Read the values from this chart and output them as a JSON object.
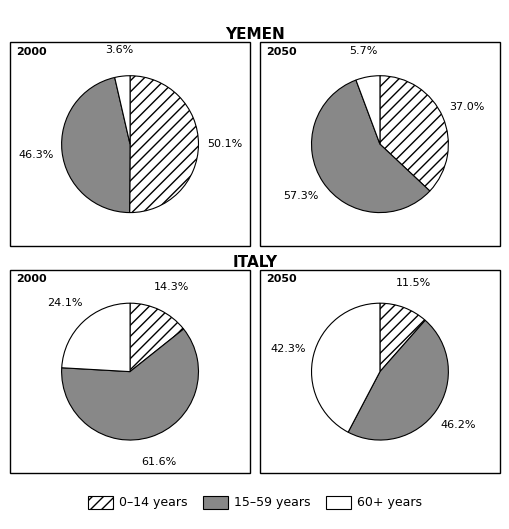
{
  "title_yemen": "YEMEN",
  "title_italy": "ITALY",
  "yemen_2000": {
    "label": "2000",
    "values": [
      50.1,
      46.3,
      3.6
    ],
    "pct_labels": [
      "50.1%",
      "46.3%",
      "3.6%"
    ]
  },
  "yemen_2050": {
    "label": "2050",
    "values": [
      37.0,
      57.3,
      5.7
    ],
    "pct_labels": [
      "37.0%",
      "57.3%",
      "5.7%"
    ]
  },
  "italy_2000": {
    "label": "2000",
    "values": [
      14.3,
      61.6,
      24.1
    ],
    "pct_labels": [
      "14.3%",
      "61.6%",
      "24.1%"
    ]
  },
  "italy_2050": {
    "label": "2050",
    "values": [
      11.5,
      46.2,
      42.3
    ],
    "pct_labels": [
      "11.5%",
      "46.2%",
      "42.3%"
    ]
  },
  "legend_labels": [
    "0–14 years",
    "15–59 years",
    "60+ years"
  ],
  "face_colors": [
    "white",
    "#888888",
    "white"
  ],
  "hatches": [
    "///",
    "",
    ""
  ],
  "background": "white",
  "title_fontsize": 11,
  "label_fontsize": 8,
  "year_fontsize": 8
}
